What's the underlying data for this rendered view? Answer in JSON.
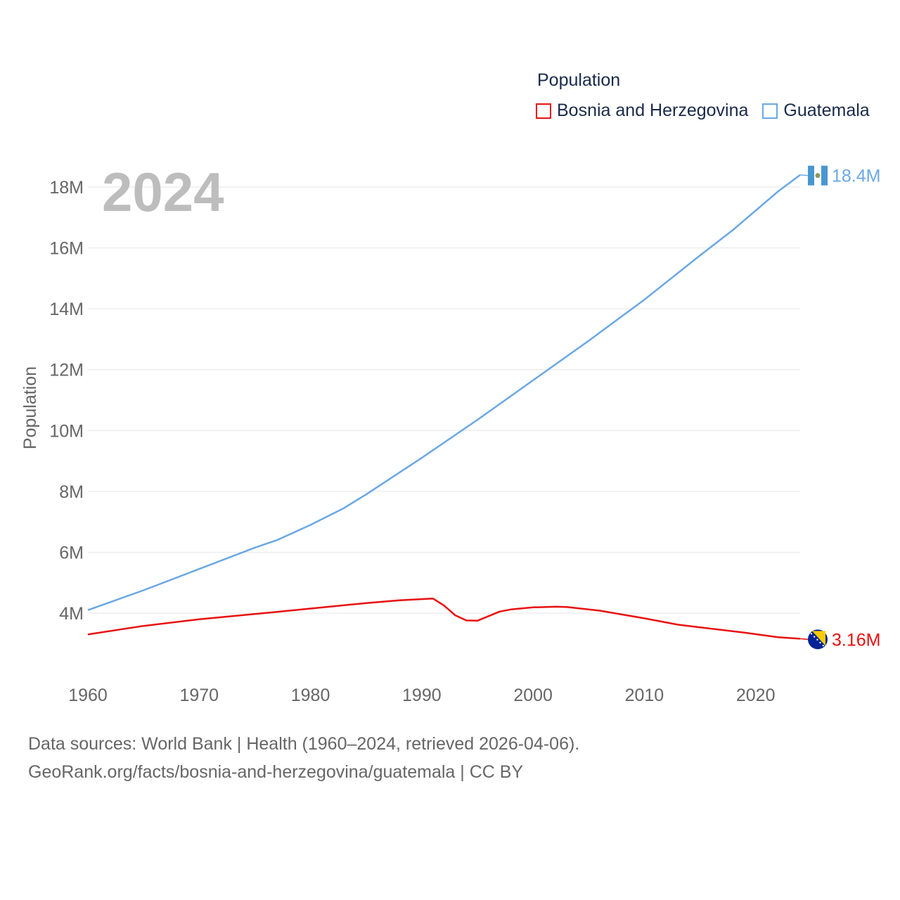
{
  "legend": {
    "title": "Population",
    "items": [
      {
        "name": "Bosnia and Herzegovina",
        "color": "#e8100f"
      },
      {
        "name": "Guatemala",
        "color": "#6aa8e4"
      }
    ]
  },
  "year_display": "2024",
  "footer": {
    "line1": "Data sources: World Bank | Health (1960–2024, retrieved 2026-04-06).",
    "line2": "GeoRank.org/facts/bosnia-and-herzegovina/guatemala | CC BY"
  },
  "chart_data": {
    "type": "line",
    "title": "Population",
    "xlabel": "",
    "ylabel": "Population",
    "xlim": [
      1960,
      2024
    ],
    "ylim": [
      1800000,
      19000000
    ],
    "x_ticks": [
      1960,
      1970,
      1980,
      1990,
      2000,
      2010,
      2020
    ],
    "y_ticks": [
      {
        "value": 4000000,
        "label": "4M"
      },
      {
        "value": 6000000,
        "label": "6M"
      },
      {
        "value": 8000000,
        "label": "8M"
      },
      {
        "value": 10000000,
        "label": "10M"
      },
      {
        "value": 12000000,
        "label": "12M"
      },
      {
        "value": 14000000,
        "label": "14M"
      },
      {
        "value": 16000000,
        "label": "16M"
      },
      {
        "value": 18000000,
        "label": "18M"
      }
    ],
    "grid": true,
    "legend_position": "top-right",
    "series": [
      {
        "name": "Guatemala",
        "color": "#6aa8e4",
        "end_label": "18.4M",
        "flag": "guatemala-flag",
        "x": [
          1960,
          1965,
          1970,
          1975,
          1977,
          1980,
          1983,
          1985,
          1990,
          1995,
          2000,
          2005,
          2010,
          2015,
          2018,
          2022,
          2024
        ],
        "values": [
          4100000,
          4750000,
          5450000,
          6150000,
          6400000,
          6900000,
          7450000,
          7900000,
          9100000,
          10350000,
          11650000,
          12950000,
          14300000,
          15750000,
          16600000,
          17850000,
          18400000
        ]
      },
      {
        "name": "Bosnia and Herzegovina",
        "color": "#e8100f",
        "end_label": "3.16M",
        "flag": "bosnia-flag",
        "x": [
          1960,
          1965,
          1970,
          1975,
          1980,
          1985,
          1988,
          1991,
          1992,
          1993,
          1994,
          1995,
          1996,
          1997,
          1998,
          2000,
          2002,
          2003,
          2006,
          2010,
          2013,
          2016,
          2019,
          2022,
          2024
        ],
        "values": [
          3300000,
          3580000,
          3800000,
          3970000,
          4150000,
          4330000,
          4420000,
          4480000,
          4250000,
          3930000,
          3760000,
          3750000,
          3900000,
          4050000,
          4120000,
          4190000,
          4210000,
          4200000,
          4080000,
          3830000,
          3620000,
          3490000,
          3360000,
          3210000,
          3160000
        ]
      }
    ]
  }
}
